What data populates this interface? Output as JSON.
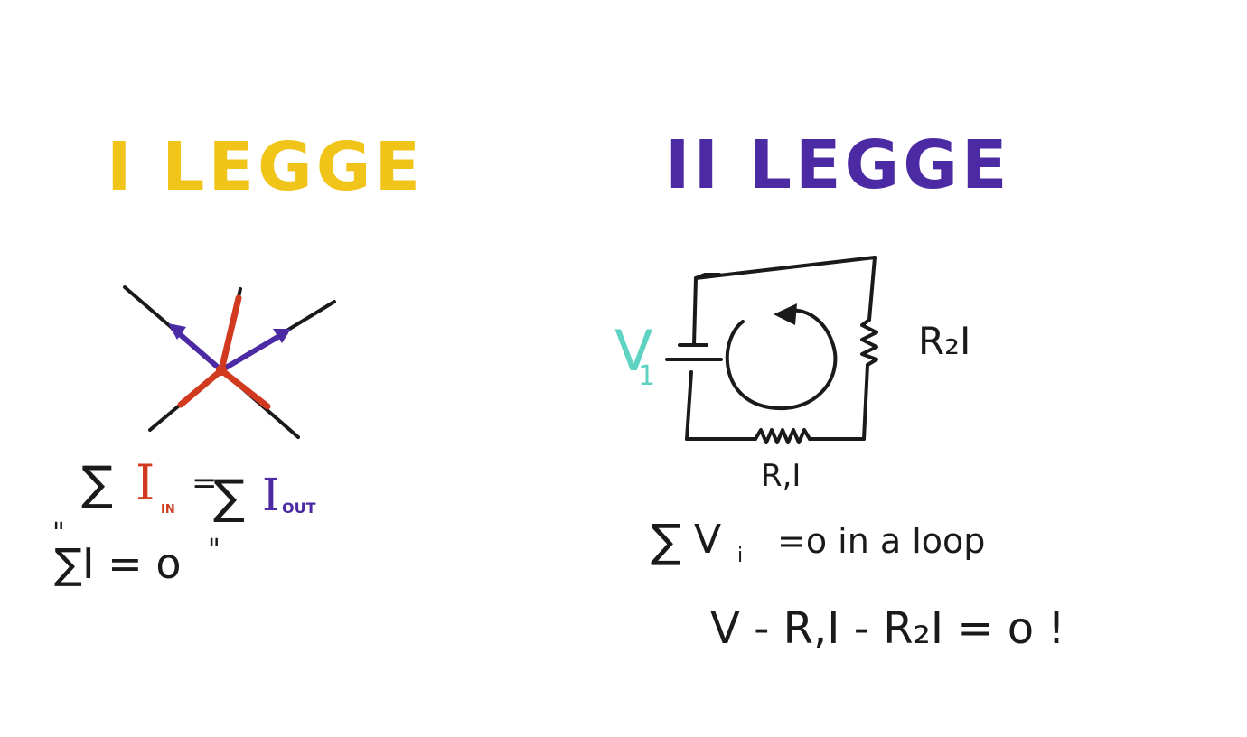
{
  "colors": {
    "law1": "#f0c419",
    "law2": "#4b2aa4",
    "ink": "#1a1a1a",
    "current_in": "#d13a1f",
    "current_out": "#4b2aa4",
    "voltage": "#5fd3c2"
  },
  "law1": {
    "title": "I LEGGE",
    "sum_symbol": "∑",
    "current": "I",
    "in_sub": "IN",
    "equals": "=",
    "out_sub": "OUT",
    "note_open": "\"",
    "note_eq": "∑I = o",
    "note_close": "\""
  },
  "law2": {
    "title": "II LEGGE",
    "source_letter": "V",
    "source_sub": "1",
    "r2_drop": "R₂I",
    "r1_drop": "R,I",
    "rule_sum": "∑",
    "rule_v": "V",
    "rule_sub": "i",
    "rule_rest": "=o in a loop",
    "example": "V - R,I - R₂I = o  !"
  }
}
